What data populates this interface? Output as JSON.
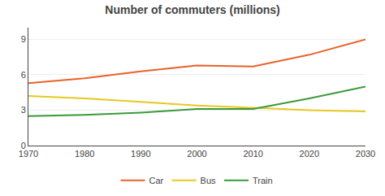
{
  "chart_data": {
    "type": "line",
    "title": "Number of commuters (millions)",
    "x": [
      1970,
      1980,
      1990,
      2000,
      2010,
      2020,
      2030
    ],
    "series": [
      {
        "name": "Car",
        "color": "#e8622a",
        "values": [
          5.3,
          5.7,
          6.3,
          6.8,
          6.7,
          7.7,
          9.0
        ]
      },
      {
        "name": "Bus",
        "color": "#e8c820",
        "values": [
          4.2,
          4.0,
          3.7,
          3.4,
          3.2,
          3.0,
          2.9
        ]
      },
      {
        "name": "Train",
        "color": "#3a9a3a",
        "values": [
          2.5,
          2.6,
          2.8,
          3.1,
          3.1,
          4.0,
          5.0
        ]
      }
    ],
    "xlim": [
      1970,
      2030
    ],
    "xticks": [
      1970,
      1980,
      1990,
      2000,
      2010,
      2020,
      2030
    ],
    "ylim": [
      0,
      10
    ],
    "yticks": [
      0,
      3,
      6,
      9
    ],
    "grid": "y",
    "legend": "bottom"
  }
}
